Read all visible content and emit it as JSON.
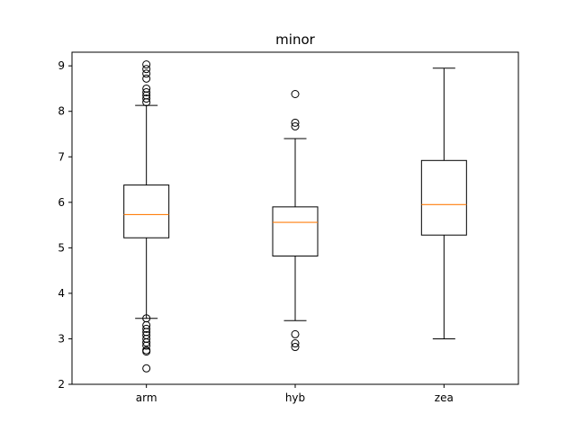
{
  "chart_data": {
    "type": "boxplot",
    "title": "minor",
    "xlabel": "",
    "ylabel": "",
    "categories": [
      "arm",
      "hyb",
      "zea"
    ],
    "ylim": [
      2,
      9.3
    ],
    "yticks": [
      2,
      3,
      4,
      5,
      6,
      7,
      8,
      9
    ],
    "grid": false,
    "boxes": [
      {
        "label": "arm",
        "whisker_low": 3.45,
        "q1": 5.22,
        "median": 5.73,
        "q3": 6.38,
        "whisker_high": 8.13,
        "outliers": [
          2.35,
          2.72,
          2.75,
          2.85,
          2.92,
          3.0,
          3.08,
          3.15,
          3.22,
          3.3,
          3.45,
          8.2,
          8.28,
          8.35,
          8.42,
          8.5,
          8.72,
          8.83,
          8.93,
          9.03
        ]
      },
      {
        "label": "hyb",
        "whisker_low": 3.4,
        "q1": 4.82,
        "median": 5.56,
        "q3": 5.9,
        "whisker_high": 7.4,
        "outliers": [
          2.82,
          2.9,
          3.1,
          7.67,
          7.75,
          8.38
        ]
      },
      {
        "label": "zea",
        "whisker_low": 3.0,
        "q1": 5.28,
        "median": 5.95,
        "q3": 6.92,
        "whisker_high": 8.95,
        "outliers": []
      }
    ],
    "colors": {
      "box": "#000000",
      "median": "#ff7f0e",
      "outlier": "#000000",
      "background": "#ffffff"
    }
  }
}
